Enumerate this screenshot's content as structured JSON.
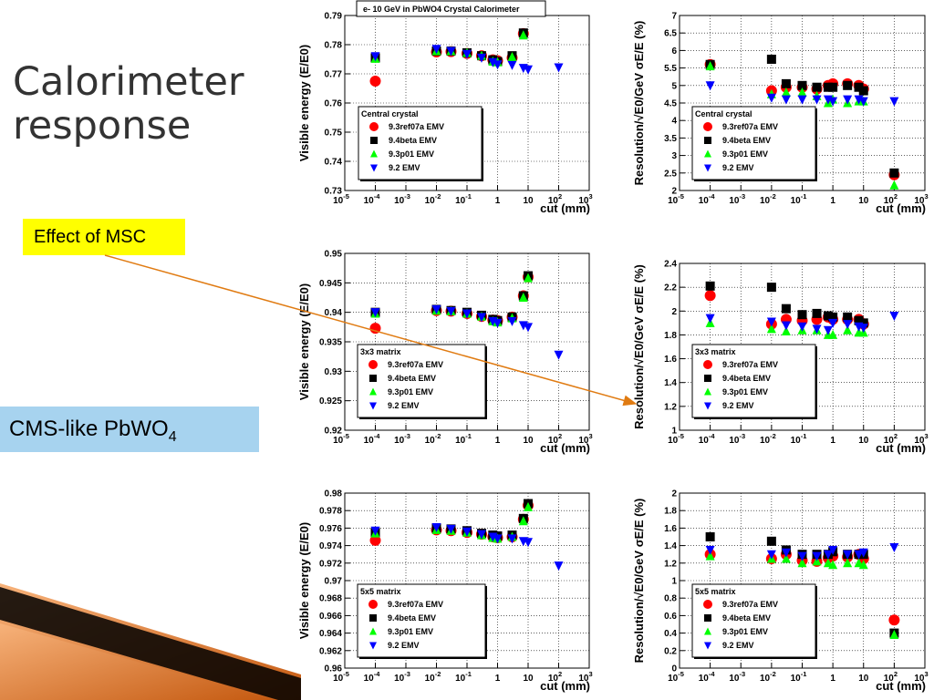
{
  "slide": {
    "title": "Calorimeter\nresponse",
    "msc_label": "Effect of MSC",
    "cms_label_main": "CMS-like PbWO",
    "cms_label_sub": "4"
  },
  "colors": {
    "accent_orange": "#e07b12",
    "label_yellow": "#ffff00",
    "label_blue": "#a7d3ef"
  },
  "chart_data": [
    {
      "type": "scatter",
      "title": "e- 10 GeV in PbWO4 Crystal Calorimeter",
      "xlabel": "cut (mm)",
      "ylabel": "Visible energy (E/E0)",
      "xscale": "log",
      "xlim": [
        1e-05,
        1000
      ],
      "ylim": [
        0.73,
        0.79
      ],
      "xticks": [
        "10^-5",
        "10^-4",
        "10^-3",
        "10^-2",
        "10^-1",
        "1",
        "10",
        "10^2",
        "10^3"
      ],
      "yticks": [
        "0.73",
        "0.74",
        "0.75",
        "0.76",
        "0.77",
        "0.78",
        "0.79"
      ],
      "legend_title": "Central crystal",
      "legend_position": "bottom-left",
      "series": [
        {
          "name": "9.3ref07a EMV",
          "marker": "circle",
          "color": "#ff0000",
          "x": [
            0.0001,
            0.01,
            0.03,
            0.1,
            0.3,
            0.7,
            1,
            3,
            7
          ],
          "y": [
            0.7675,
            0.7775,
            0.7776,
            0.777,
            0.7762,
            0.7748,
            0.7745,
            0.7755,
            0.7838
          ]
        },
        {
          "name": "9.4beta EMV",
          "marker": "square",
          "color": "#000000",
          "x": [
            0.0001,
            0.01,
            0.03,
            0.1,
            0.3,
            0.7,
            1,
            3,
            7
          ],
          "y": [
            0.7755,
            0.7778,
            0.7778,
            0.7772,
            0.7762,
            0.7748,
            0.7742,
            0.7762,
            0.784
          ]
        },
        {
          "name": "9.3p01 EMV",
          "marker": "triangle-up",
          "color": "#00ff00",
          "x": [
            0.0001,
            0.01,
            0.03,
            0.1,
            0.3,
            0.7,
            1,
            3,
            7
          ],
          "y": [
            0.7752,
            0.7778,
            0.7778,
            0.7772,
            0.7762,
            0.7742,
            0.774,
            0.7758,
            0.7832
          ]
        },
        {
          "name": "9.2 EMV",
          "marker": "triangle-down",
          "color": "#0000ff",
          "x": [
            0.0001,
            0.01,
            0.03,
            0.1,
            0.3,
            0.7,
            1,
            3,
            7,
            10,
            100
          ],
          "y": [
            0.776,
            0.7785,
            0.7778,
            0.7768,
            0.7755,
            0.774,
            0.7732,
            0.773,
            0.772,
            0.7715,
            0.7722
          ]
        }
      ]
    },
    {
      "type": "scatter",
      "title": "",
      "xlabel": "cut (mm)",
      "ylabel": "Resolution/√E0/GeV σE/E (%)",
      "xscale": "log",
      "xlim": [
        1e-05,
        1000
      ],
      "ylim": [
        2,
        7
      ],
      "xticks": [
        "10^-5",
        "10^-4",
        "10^-3",
        "10^-2",
        "10^-1",
        "1",
        "10",
        "10^2",
        "10^3"
      ],
      "yticks": [
        "2",
        "2.5",
        "3",
        "3.5",
        "4",
        "4.5",
        "5",
        "5.5",
        "6",
        "6.5",
        "7"
      ],
      "legend_title": "Central crystal",
      "legend_position": "bottom-left",
      "series": [
        {
          "name": "9.3ref07a EMV",
          "marker": "circle",
          "color": "#ff0000",
          "x": [
            0.0001,
            0.01,
            0.03,
            0.1,
            0.3,
            0.7,
            1,
            3,
            7,
            10,
            100
          ],
          "y": [
            5.6,
            4.85,
            4.95,
            4.95,
            4.9,
            5.0,
            5.05,
            5.05,
            5.0,
            4.9,
            2.45
          ]
        },
        {
          "name": "9.4beta EMV",
          "marker": "square",
          "color": "#000000",
          "x": [
            0.0001,
            0.01,
            0.03,
            0.1,
            0.3,
            0.7,
            1,
            3,
            7,
            10,
            100
          ],
          "y": [
            5.6,
            5.75,
            5.05,
            5.0,
            4.95,
            4.95,
            4.95,
            5.0,
            4.95,
            4.85,
            2.5
          ]
        },
        {
          "name": "9.3p01 EMV",
          "marker": "triangle-up",
          "color": "#00ff00",
          "x": [
            0.0001,
            0.01,
            0.03,
            0.1,
            0.3,
            0.7,
            1,
            3,
            7,
            10,
            100
          ],
          "y": [
            5.55,
            4.75,
            4.8,
            4.8,
            4.7,
            4.5,
            4.6,
            4.5,
            4.55,
            4.55,
            2.15
          ]
        },
        {
          "name": "9.2 EMV",
          "marker": "triangle-down",
          "color": "#0000ff",
          "x": [
            0.0001,
            0.01,
            0.03,
            0.1,
            0.3,
            0.7,
            1,
            3,
            7,
            10,
            100
          ],
          "y": [
            5.0,
            4.65,
            4.6,
            4.6,
            4.6,
            4.6,
            4.55,
            4.6,
            4.6,
            4.55,
            4.55
          ]
        }
      ]
    },
    {
      "type": "scatter",
      "title": "",
      "xlabel": "cut (mm)",
      "ylabel": "Visible energy (E/E0)",
      "xscale": "log",
      "xlim": [
        1e-05,
        1000
      ],
      "ylim": [
        0.92,
        0.95
      ],
      "xticks": [
        "10^-5",
        "10^-4",
        "10^-3",
        "10^-2",
        "10^-1",
        "1",
        "10",
        "10^2",
        "10^3"
      ],
      "yticks": [
        "0.92",
        "0.925",
        "0.93",
        "0.935",
        "0.94",
        "0.945",
        "0.95"
      ],
      "legend_title": "3x3 matrix",
      "legend_position": "bottom-left",
      "series": [
        {
          "name": "9.3ref07a EMV",
          "marker": "circle",
          "color": "#ff0000",
          "x": [
            0.0001,
            0.01,
            0.03,
            0.1,
            0.3,
            0.7,
            1,
            3,
            7,
            10
          ],
          "y": [
            0.9373,
            0.9403,
            0.9402,
            0.9398,
            0.9393,
            0.9387,
            0.9386,
            0.9392,
            0.9428,
            0.946
          ]
        },
        {
          "name": "9.4beta EMV",
          "marker": "square",
          "color": "#000000",
          "x": [
            0.0001,
            0.01,
            0.03,
            0.1,
            0.3,
            0.7,
            1,
            3,
            7,
            10
          ],
          "y": [
            0.94,
            0.9405,
            0.9403,
            0.94,
            0.9395,
            0.9388,
            0.9386,
            0.9392,
            0.9428,
            0.9462
          ]
        },
        {
          "name": "9.3p01 EMV",
          "marker": "triangle-up",
          "color": "#00ff00",
          "x": [
            0.0001,
            0.01,
            0.03,
            0.1,
            0.3,
            0.7,
            1,
            3,
            7,
            10
          ],
          "y": [
            0.9398,
            0.9403,
            0.9402,
            0.9398,
            0.9393,
            0.9385,
            0.9383,
            0.939,
            0.9425,
            0.9458
          ]
        },
        {
          "name": "9.2 EMV",
          "marker": "triangle-down",
          "color": "#0000ff",
          "x": [
            0.0001,
            0.01,
            0.03,
            0.1,
            0.3,
            0.7,
            1,
            3,
            7,
            10,
            100
          ],
          "y": [
            0.94,
            0.9405,
            0.9402,
            0.9398,
            0.9392,
            0.9385,
            0.9382,
            0.9385,
            0.9378,
            0.9375,
            0.9328
          ]
        }
      ]
    },
    {
      "type": "scatter",
      "title": "",
      "xlabel": "cut (mm)",
      "ylabel": "Resolution/√E0/GeV σE/E (%)",
      "xscale": "log",
      "xlim": [
        1e-05,
        1000
      ],
      "ylim": [
        1,
        2.4
      ],
      "xticks": [
        "10^-5",
        "10^-4",
        "10^-3",
        "10^-2",
        "10^-1",
        "1",
        "10",
        "10^2",
        "10^3"
      ],
      "yticks": [
        "1",
        "1.2",
        "1.4",
        "1.6",
        "1.8",
        "2",
        "2.2",
        "2.4"
      ],
      "legend_title": "3x3 matrix",
      "legend_position": "bottom-left",
      "series": [
        {
          "name": "9.3ref07a EMV",
          "marker": "circle",
          "color": "#ff0000",
          "x": [
            0.0001,
            0.01,
            0.03,
            0.1,
            0.3,
            0.7,
            1,
            3,
            7,
            10
          ],
          "y": [
            2.13,
            1.89,
            1.93,
            1.92,
            1.93,
            1.95,
            1.93,
            1.93,
            1.93,
            1.89
          ]
        },
        {
          "name": "9.4beta EMV",
          "marker": "square",
          "color": "#000000",
          "x": [
            0.0001,
            0.01,
            0.03,
            0.1,
            0.3,
            0.7,
            1,
            3,
            7,
            10
          ],
          "y": [
            2.21,
            2.2,
            2.02,
            1.97,
            1.98,
            1.96,
            1.95,
            1.95,
            1.92,
            1.9
          ]
        },
        {
          "name": "9.3p01 EMV",
          "marker": "triangle-up",
          "color": "#00ff00",
          "x": [
            0.0001,
            0.01,
            0.03,
            0.1,
            0.3,
            0.7,
            1,
            3,
            7,
            10
          ],
          "y": [
            1.9,
            1.85,
            1.83,
            1.84,
            1.84,
            1.8,
            1.8,
            1.84,
            1.82,
            1.82
          ]
        },
        {
          "name": "9.2 EMV",
          "marker": "triangle-down",
          "color": "#0000ff",
          "x": [
            0.0001,
            0.01,
            0.03,
            0.1,
            0.3,
            0.7,
            1,
            3,
            7,
            10,
            100
          ],
          "y": [
            1.94,
            1.91,
            1.88,
            1.87,
            1.85,
            1.84,
            1.9,
            1.89,
            1.87,
            1.86,
            1.96
          ]
        }
      ]
    },
    {
      "type": "scatter",
      "title": "",
      "xlabel": "cut (mm)",
      "ylabel": "Visible energy (E/E0)",
      "xscale": "log",
      "xlim": [
        1e-05,
        1000
      ],
      "ylim": [
        0.96,
        0.98
      ],
      "xticks": [
        "10^-5",
        "10^-4",
        "10^-3",
        "10^-2",
        "10^-1",
        "1",
        "10",
        "10^2",
        "10^3"
      ],
      "yticks": [
        "0.96",
        "0.962",
        "0.964",
        "0.966",
        "0.968",
        "0.97",
        "0.972",
        "0.974",
        "0.976",
        "0.978",
        "0.98"
      ],
      "legend_title": "5x5 matrix",
      "legend_position": "bottom-left",
      "series": [
        {
          "name": "9.3ref07a EMV",
          "marker": "circle",
          "color": "#ff0000",
          "x": [
            0.0001,
            0.01,
            0.03,
            0.1,
            0.3,
            0.7,
            1,
            3,
            7,
            10
          ],
          "y": [
            0.9746,
            0.9758,
            0.9757,
            0.9755,
            0.9753,
            0.975,
            0.9749,
            0.975,
            0.977,
            0.9786
          ]
        },
        {
          "name": "9.4beta EMV",
          "marker": "square",
          "color": "#000000",
          "x": [
            0.0001,
            0.01,
            0.03,
            0.1,
            0.3,
            0.7,
            1,
            3,
            7,
            10
          ],
          "y": [
            0.9755,
            0.976,
            0.9759,
            0.9757,
            0.9754,
            0.9752,
            0.9751,
            0.9752,
            0.9771,
            0.9788
          ]
        },
        {
          "name": "9.3p01 EMV",
          "marker": "triangle-up",
          "color": "#00ff00",
          "x": [
            0.0001,
            0.01,
            0.03,
            0.1,
            0.3,
            0.7,
            1,
            3,
            7,
            10
          ],
          "y": [
            0.9754,
            0.9758,
            0.9757,
            0.9755,
            0.9752,
            0.9749,
            0.9748,
            0.975,
            0.9768,
            0.9784
          ]
        },
        {
          "name": "9.2 EMV",
          "marker": "triangle-down",
          "color": "#0000ff",
          "x": [
            0.0001,
            0.01,
            0.03,
            0.1,
            0.3,
            0.7,
            1,
            3,
            7,
            10,
            100
          ],
          "y": [
            0.9757,
            0.9761,
            0.9759,
            0.9756,
            0.9753,
            0.975,
            0.9748,
            0.9748,
            0.9745,
            0.9744,
            0.9717
          ]
        }
      ]
    },
    {
      "type": "scatter",
      "title": "",
      "xlabel": "cut (mm)",
      "ylabel": "Resolution/√E0/GeV σE/E (%)",
      "xscale": "log",
      "xlim": [
        1e-05,
        1000
      ],
      "ylim": [
        0,
        2
      ],
      "xticks": [
        "10^-5",
        "10^-4",
        "10^-3",
        "10^-2",
        "10^-1",
        "1",
        "10",
        "10^2",
        "10^3"
      ],
      "yticks": [
        "0",
        "0.2",
        "0.4",
        "0.6",
        "0.8",
        "1",
        "1.2",
        "1.4",
        "1.6",
        "1.8",
        "2"
      ],
      "legend_title": "5x5 matrix",
      "legend_position": "bottom-left",
      "series": [
        {
          "name": "9.3ref07a EMV",
          "marker": "circle",
          "color": "#ff0000",
          "x": [
            0.0001,
            0.01,
            0.03,
            0.1,
            0.3,
            0.7,
            1,
            3,
            7,
            10,
            100
          ],
          "y": [
            1.3,
            1.25,
            1.3,
            1.23,
            1.22,
            1.26,
            1.28,
            1.27,
            1.3,
            1.25,
            0.55
          ]
        },
        {
          "name": "9.4beta EMV",
          "marker": "square",
          "color": "#000000",
          "x": [
            0.0001,
            0.01,
            0.03,
            0.1,
            0.3,
            0.7,
            1,
            3,
            7,
            10,
            100
          ],
          "y": [
            1.5,
            1.45,
            1.35,
            1.3,
            1.3,
            1.3,
            1.33,
            1.3,
            1.3,
            1.3,
            0.4
          ]
        },
        {
          "name": "9.3p01 EMV",
          "marker": "triangle-up",
          "color": "#00ff00",
          "x": [
            0.0001,
            0.01,
            0.03,
            0.1,
            0.3,
            0.7,
            1,
            3,
            7,
            10,
            100
          ],
          "y": [
            1.28,
            1.25,
            1.25,
            1.2,
            1.22,
            1.2,
            1.18,
            1.2,
            1.2,
            1.18,
            0.38
          ]
        },
        {
          "name": "9.2 EMV",
          "marker": "triangle-down",
          "color": "#0000ff",
          "x": [
            0.0001,
            0.01,
            0.03,
            0.1,
            0.3,
            0.7,
            1,
            3,
            7,
            10,
            100
          ],
          "y": [
            1.35,
            1.3,
            1.32,
            1.28,
            1.28,
            1.3,
            1.35,
            1.3,
            1.3,
            1.32,
            1.38
          ]
        }
      ]
    }
  ]
}
